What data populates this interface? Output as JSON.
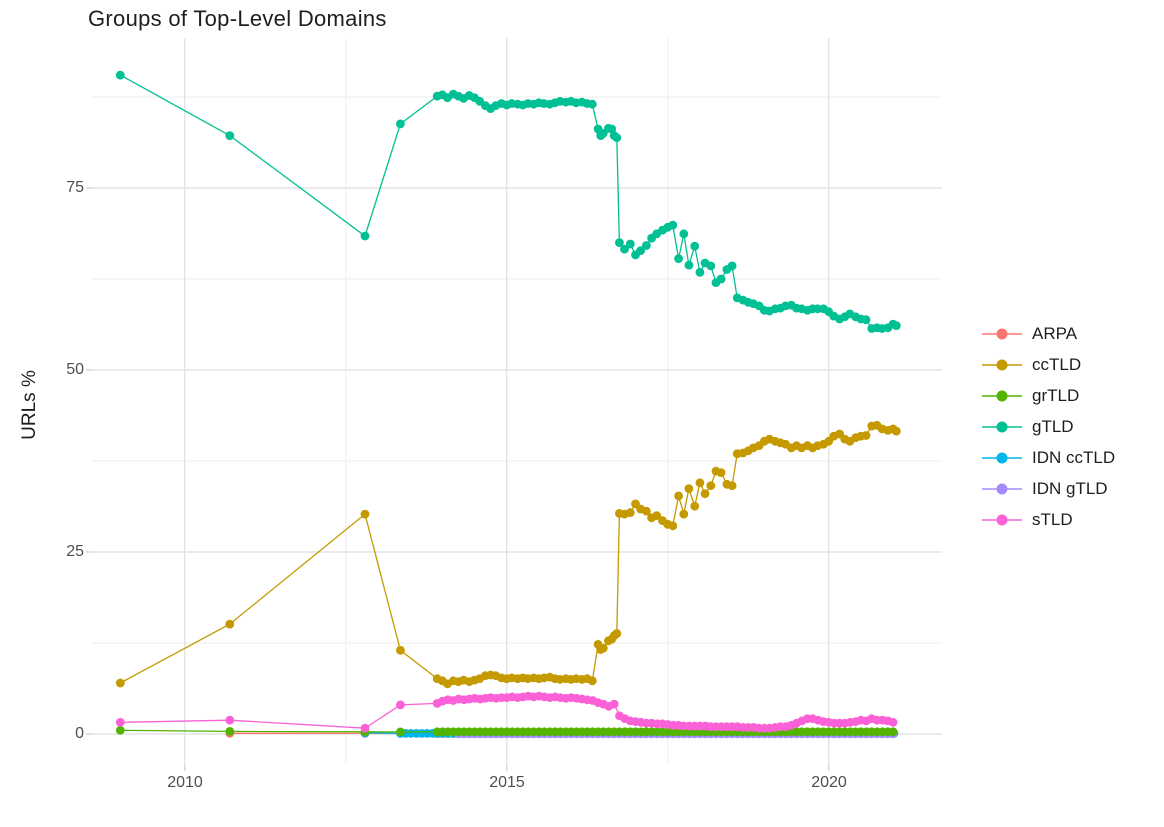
{
  "title": "Groups of Top-Level Domains",
  "axes": {
    "y_label": "URLs %",
    "x_ticks": [
      "2010",
      "2015",
      "2020"
    ],
    "x_tick_years": [
      2010,
      2015,
      2020
    ],
    "x_minor_years": [
      2012.5,
      2017.5
    ],
    "y_ticks": [
      "0",
      "25",
      "50",
      "75"
    ],
    "y_tick_values": [
      0,
      25,
      50,
      75
    ],
    "y_minor_values": [
      12.5,
      37.5,
      62.5,
      87.5
    ],
    "xlim": [
      2008.56,
      2021.76
    ],
    "ylim": [
      -4.26,
      95.6
    ],
    "grid_major_color": "#e4e4e4",
    "grid_minor_color": "#f1f1f1",
    "tick_mark_color": "#d6d6d6",
    "background": "#ffffff"
  },
  "legend": {
    "position": "right",
    "items": [
      {
        "label": "ARPA",
        "color": "#F8766D"
      },
      {
        "label": "ccTLD",
        "color": "#C49A00"
      },
      {
        "label": "grTLD",
        "color": "#53B400"
      },
      {
        "label": "gTLD",
        "color": "#00C094"
      },
      {
        "label": "IDN ccTLD",
        "color": "#00B6EB"
      },
      {
        "label": "IDN gTLD",
        "color": "#A58AFF"
      },
      {
        "label": "sTLD",
        "color": "#FB61D7"
      }
    ]
  },
  "chart_data": {
    "type": "line",
    "title": "Groups of Top-Level Domains",
    "xlabel": "",
    "ylabel": "URLs %",
    "x_unit": "year",
    "y_unit": "percent",
    "draw_order": [
      "ARPA",
      "IDN ccTLD",
      "IDN gTLD",
      "ccTLD",
      "gTLD",
      "grTLD",
      "sTLD"
    ],
    "series": [
      {
        "name": "gTLD",
        "color": "#00C094",
        "points": [
          [
            2009.0,
            90.5
          ],
          [
            2010.7,
            82.2
          ],
          [
            2012.8,
            68.4
          ],
          [
            2013.35,
            83.8
          ],
          [
            2013.92,
            87.6
          ],
          [
            2014.0,
            87.8
          ],
          [
            2014.08,
            87.4
          ],
          [
            2014.17,
            87.9
          ],
          [
            2014.25,
            87.6
          ],
          [
            2014.33,
            87.3
          ],
          [
            2014.42,
            87.7
          ],
          [
            2014.5,
            87.4
          ],
          [
            2014.58,
            86.9
          ],
          [
            2014.67,
            86.3
          ],
          [
            2014.75,
            85.9
          ],
          [
            2014.83,
            86.3
          ],
          [
            2014.92,
            86.6
          ],
          [
            2015.0,
            86.4
          ],
          [
            2015.08,
            86.6
          ],
          [
            2015.17,
            86.5
          ],
          [
            2015.25,
            86.4
          ],
          [
            2015.33,
            86.6
          ],
          [
            2015.42,
            86.5
          ],
          [
            2015.5,
            86.7
          ],
          [
            2015.58,
            86.6
          ],
          [
            2015.67,
            86.5
          ],
          [
            2015.75,
            86.7
          ],
          [
            2015.83,
            86.9
          ],
          [
            2015.92,
            86.8
          ],
          [
            2016.0,
            86.9
          ],
          [
            2016.08,
            86.7
          ],
          [
            2016.17,
            86.8
          ],
          [
            2016.25,
            86.6
          ],
          [
            2016.33,
            86.5
          ],
          [
            2016.42,
            83.1
          ],
          [
            2016.46,
            82.2
          ],
          [
            2016.5,
            82.5
          ],
          [
            2016.58,
            83.2
          ],
          [
            2016.63,
            83.1
          ],
          [
            2016.67,
            82.2
          ],
          [
            2016.71,
            81.9
          ],
          [
            2016.75,
            67.5
          ],
          [
            2016.83,
            66.6
          ],
          [
            2016.92,
            67.3
          ],
          [
            2017.0,
            65.8
          ],
          [
            2017.08,
            66.4
          ],
          [
            2017.17,
            67.1
          ],
          [
            2017.25,
            68.1
          ],
          [
            2017.33,
            68.7
          ],
          [
            2017.42,
            69.2
          ],
          [
            2017.5,
            69.6
          ],
          [
            2017.58,
            69.9
          ],
          [
            2017.67,
            65.3
          ],
          [
            2017.75,
            68.7
          ],
          [
            2017.83,
            64.4
          ],
          [
            2017.92,
            67.0
          ],
          [
            2018.0,
            63.4
          ],
          [
            2018.08,
            64.7
          ],
          [
            2018.17,
            64.3
          ],
          [
            2018.25,
            62.0
          ],
          [
            2018.33,
            62.5
          ],
          [
            2018.42,
            63.8
          ],
          [
            2018.5,
            64.3
          ],
          [
            2018.58,
            59.9
          ],
          [
            2018.67,
            59.6
          ],
          [
            2018.75,
            59.3
          ],
          [
            2018.83,
            59.1
          ],
          [
            2018.92,
            58.8
          ],
          [
            2019.0,
            58.2
          ],
          [
            2019.08,
            58.1
          ],
          [
            2019.17,
            58.4
          ],
          [
            2019.25,
            58.5
          ],
          [
            2019.33,
            58.8
          ],
          [
            2019.42,
            58.9
          ],
          [
            2019.5,
            58.5
          ],
          [
            2019.58,
            58.4
          ],
          [
            2019.67,
            58.2
          ],
          [
            2019.75,
            58.4
          ],
          [
            2019.83,
            58.4
          ],
          [
            2019.92,
            58.4
          ],
          [
            2020.0,
            58.0
          ],
          [
            2020.08,
            57.4
          ],
          [
            2020.17,
            57.0
          ],
          [
            2020.25,
            57.3
          ],
          [
            2020.33,
            57.7
          ],
          [
            2020.42,
            57.3
          ],
          [
            2020.5,
            57.0
          ],
          [
            2020.58,
            56.9
          ],
          [
            2020.67,
            55.7
          ],
          [
            2020.75,
            55.8
          ],
          [
            2020.83,
            55.7
          ],
          [
            2020.92,
            55.8
          ],
          [
            2021.0,
            56.3
          ],
          [
            2021.05,
            56.1
          ]
        ]
      },
      {
        "name": "ccTLD",
        "color": "#C49A00",
        "points": [
          [
            2009.0,
            7.0
          ],
          [
            2010.7,
            15.1
          ],
          [
            2012.8,
            30.2
          ],
          [
            2013.35,
            11.5
          ],
          [
            2013.92,
            7.6
          ],
          [
            2014.0,
            7.3
          ],
          [
            2014.08,
            6.9
          ],
          [
            2014.17,
            7.3
          ],
          [
            2014.25,
            7.2
          ],
          [
            2014.33,
            7.4
          ],
          [
            2014.42,
            7.2
          ],
          [
            2014.5,
            7.4
          ],
          [
            2014.58,
            7.6
          ],
          [
            2014.67,
            8.0
          ],
          [
            2014.75,
            8.1
          ],
          [
            2014.83,
            8.0
          ],
          [
            2014.92,
            7.7
          ],
          [
            2015.0,
            7.6
          ],
          [
            2015.08,
            7.7
          ],
          [
            2015.17,
            7.6
          ],
          [
            2015.25,
            7.7
          ],
          [
            2015.33,
            7.6
          ],
          [
            2015.42,
            7.7
          ],
          [
            2015.5,
            7.6
          ],
          [
            2015.58,
            7.7
          ],
          [
            2015.67,
            7.8
          ],
          [
            2015.75,
            7.6
          ],
          [
            2015.83,
            7.5
          ],
          [
            2015.92,
            7.6
          ],
          [
            2016.0,
            7.5
          ],
          [
            2016.08,
            7.6
          ],
          [
            2016.17,
            7.5
          ],
          [
            2016.25,
            7.6
          ],
          [
            2016.33,
            7.3
          ],
          [
            2016.42,
            12.3
          ],
          [
            2016.46,
            11.6
          ],
          [
            2016.5,
            11.8
          ],
          [
            2016.58,
            12.8
          ],
          [
            2016.63,
            13.0
          ],
          [
            2016.67,
            13.5
          ],
          [
            2016.71,
            13.8
          ],
          [
            2016.75,
            30.3
          ],
          [
            2016.83,
            30.2
          ],
          [
            2016.92,
            30.4
          ],
          [
            2017.0,
            31.6
          ],
          [
            2017.08,
            30.9
          ],
          [
            2017.17,
            30.6
          ],
          [
            2017.25,
            29.7
          ],
          [
            2017.33,
            30.0
          ],
          [
            2017.42,
            29.3
          ],
          [
            2017.5,
            28.8
          ],
          [
            2017.58,
            28.6
          ],
          [
            2017.67,
            32.7
          ],
          [
            2017.75,
            30.2
          ],
          [
            2017.83,
            33.7
          ],
          [
            2017.92,
            31.3
          ],
          [
            2018.0,
            34.5
          ],
          [
            2018.08,
            33.0
          ],
          [
            2018.17,
            34.1
          ],
          [
            2018.25,
            36.1
          ],
          [
            2018.33,
            35.9
          ],
          [
            2018.42,
            34.3
          ],
          [
            2018.5,
            34.1
          ],
          [
            2018.58,
            38.5
          ],
          [
            2018.67,
            38.6
          ],
          [
            2018.75,
            38.9
          ],
          [
            2018.83,
            39.3
          ],
          [
            2018.92,
            39.6
          ],
          [
            2019.0,
            40.2
          ],
          [
            2019.08,
            40.5
          ],
          [
            2019.17,
            40.2
          ],
          [
            2019.25,
            40.0
          ],
          [
            2019.33,
            39.8
          ],
          [
            2019.42,
            39.3
          ],
          [
            2019.5,
            39.6
          ],
          [
            2019.58,
            39.3
          ],
          [
            2019.67,
            39.6
          ],
          [
            2019.75,
            39.3
          ],
          [
            2019.83,
            39.6
          ],
          [
            2019.92,
            39.8
          ],
          [
            2020.0,
            40.2
          ],
          [
            2020.08,
            40.9
          ],
          [
            2020.17,
            41.2
          ],
          [
            2020.25,
            40.5
          ],
          [
            2020.33,
            40.2
          ],
          [
            2020.42,
            40.7
          ],
          [
            2020.5,
            40.9
          ],
          [
            2020.58,
            41.0
          ],
          [
            2020.67,
            42.3
          ],
          [
            2020.75,
            42.4
          ],
          [
            2020.83,
            41.9
          ],
          [
            2020.92,
            41.7
          ],
          [
            2021.0,
            41.9
          ],
          [
            2021.05,
            41.6
          ]
        ]
      },
      {
        "name": "sTLD",
        "color": "#FB61D7",
        "points": [
          [
            2009.0,
            1.6
          ],
          [
            2010.7,
            1.9
          ],
          [
            2012.8,
            0.8
          ],
          [
            2013.35,
            4.0
          ]
        ],
        "run": {
          "x_start": 2013.92,
          "x_step": 0.0833,
          "values": [
            4.2,
            4.5,
            4.7,
            4.6,
            4.8,
            4.7,
            4.8,
            4.9,
            4.8,
            4.9,
            5.0,
            4.9,
            5.0,
            5.0,
            5.1,
            5.0,
            5.1,
            5.2,
            5.1,
            5.2,
            5.1,
            5.0,
            5.1,
            5.0,
            4.9,
            5.0,
            4.9,
            4.8,
            4.7,
            4.6,
            4.3,
            4.1,
            3.8,
            4.1,
            2.5,
            2.1,
            1.8,
            1.7,
            1.6,
            1.5,
            1.5,
            1.4,
            1.4,
            1.3,
            1.2,
            1.2,
            1.1,
            1.1,
            1.1,
            1.1,
            1.1,
            1.0,
            1.0,
            1.0,
            1.0,
            1.0,
            1.0,
            0.9,
            0.9,
            0.9,
            0.8,
            0.8,
            0.8,
            0.9,
            1.0,
            1.0,
            1.2,
            1.5,
            1.8,
            2.1,
            2.1,
            1.9,
            1.7,
            1.6,
            1.5,
            1.5,
            1.5,
            1.6,
            1.7,
            1.9,
            1.8,
            2.1,
            1.9,
            1.9,
            1.8,
            1.6
          ]
        }
      },
      {
        "name": "grTLD",
        "color": "#53B400",
        "points": [
          [
            2009.0,
            0.5
          ],
          [
            2010.7,
            0.35
          ],
          [
            2012.8,
            0.3
          ],
          [
            2013.35,
            0.28
          ]
        ],
        "run": {
          "x_start": 2013.92,
          "x_step": 0.0833,
          "flat_value": 0.3,
          "count": 86
        }
      },
      {
        "name": "ARPA",
        "color": "#F8766D",
        "points": [
          [
            2010.7,
            0.1
          ],
          [
            2012.8,
            0.08
          ]
        ],
        "run": {
          "x_start": 2013.92,
          "x_step": 0.0833,
          "flat_value": 0.05,
          "count": 86
        }
      },
      {
        "name": "IDN ccTLD",
        "color": "#00B6EB",
        "points": [
          [
            2012.8,
            0.15
          ]
        ],
        "run": {
          "x_start": 2013.35,
          "x_step": 0.0833,
          "flat_value": 0.08,
          "count": 93
        }
      },
      {
        "name": "IDN gTLD",
        "color": "#A58AFF",
        "points": [],
        "run": {
          "x_start": 2014.25,
          "x_step": 0.0833,
          "flat_value": 0.03,
          "count": 82
        }
      }
    ]
  }
}
